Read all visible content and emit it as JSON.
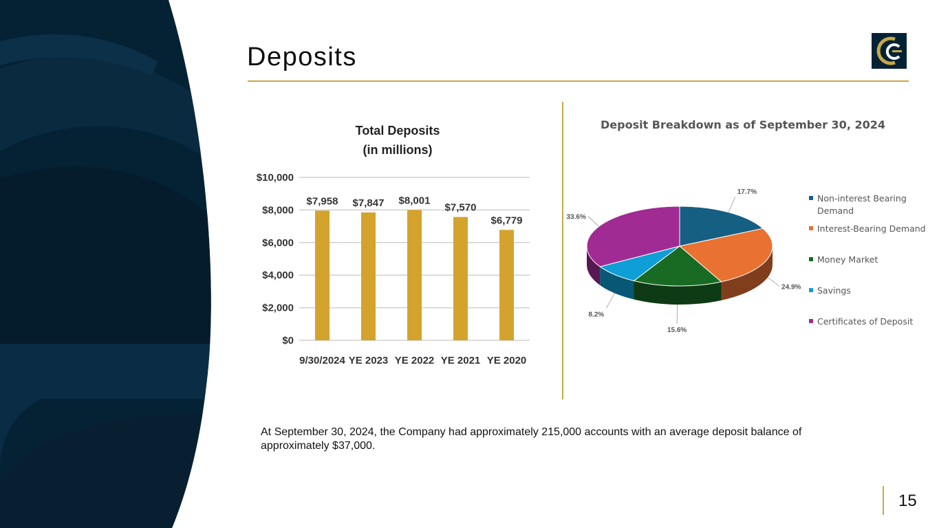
{
  "slide": {
    "title": "Deposits",
    "page_number": "15",
    "note": "At September 30, 2024, the Company had approximately 215,000 accounts with an average deposit balance of approximately $37,000."
  },
  "colors": {
    "accent_gold": "#c9a746",
    "navy": "#052235",
    "bar": "#d4a32e"
  },
  "logo": {
    "icon": "company-c-logo"
  },
  "chart_data": [
    {
      "type": "bar",
      "title_lines": [
        "Total Deposits",
        "(in millions)"
      ],
      "categories": [
        "9/30/2024",
        "YE 2023",
        "YE 2022",
        "YE 2021",
        "YE 2020"
      ],
      "values": [
        7958,
        7847,
        8001,
        7570,
        6779
      ],
      "value_labels": [
        "$7,958",
        "$7,847",
        "$8,001",
        "$7,570",
        "$6,779"
      ],
      "ylim": [
        0,
        10000
      ],
      "yticks": [
        0,
        2000,
        4000,
        6000,
        8000,
        10000
      ],
      "ytick_labels": [
        "$0",
        "$2,000",
        "$4,000",
        "$6,000",
        "$8,000",
        "$10,000"
      ],
      "grid": true,
      "color": "#d4a32e"
    },
    {
      "type": "pie",
      "title": "Deposit Breakdown as of September 30, 2024",
      "legend_position": "right",
      "slices": [
        {
          "label": "Non-interest Bearing Demand",
          "value": 17.7,
          "text": "17.7%",
          "color": "#155f82"
        },
        {
          "label": "Interest-Bearing Demand",
          "value": 24.9,
          "text": "24.9%",
          "color": "#e97132"
        },
        {
          "label": "Money Market",
          "value": 15.6,
          "text": "15.6%",
          "color": "#196b24"
        },
        {
          "label": "Savings",
          "value": 8.2,
          "text": "8.2%",
          "color": "#0f9ed5"
        },
        {
          "label": "Certificates of Deposit",
          "value": 33.6,
          "text": "33.6%",
          "color": "#a02b93"
        }
      ]
    }
  ]
}
